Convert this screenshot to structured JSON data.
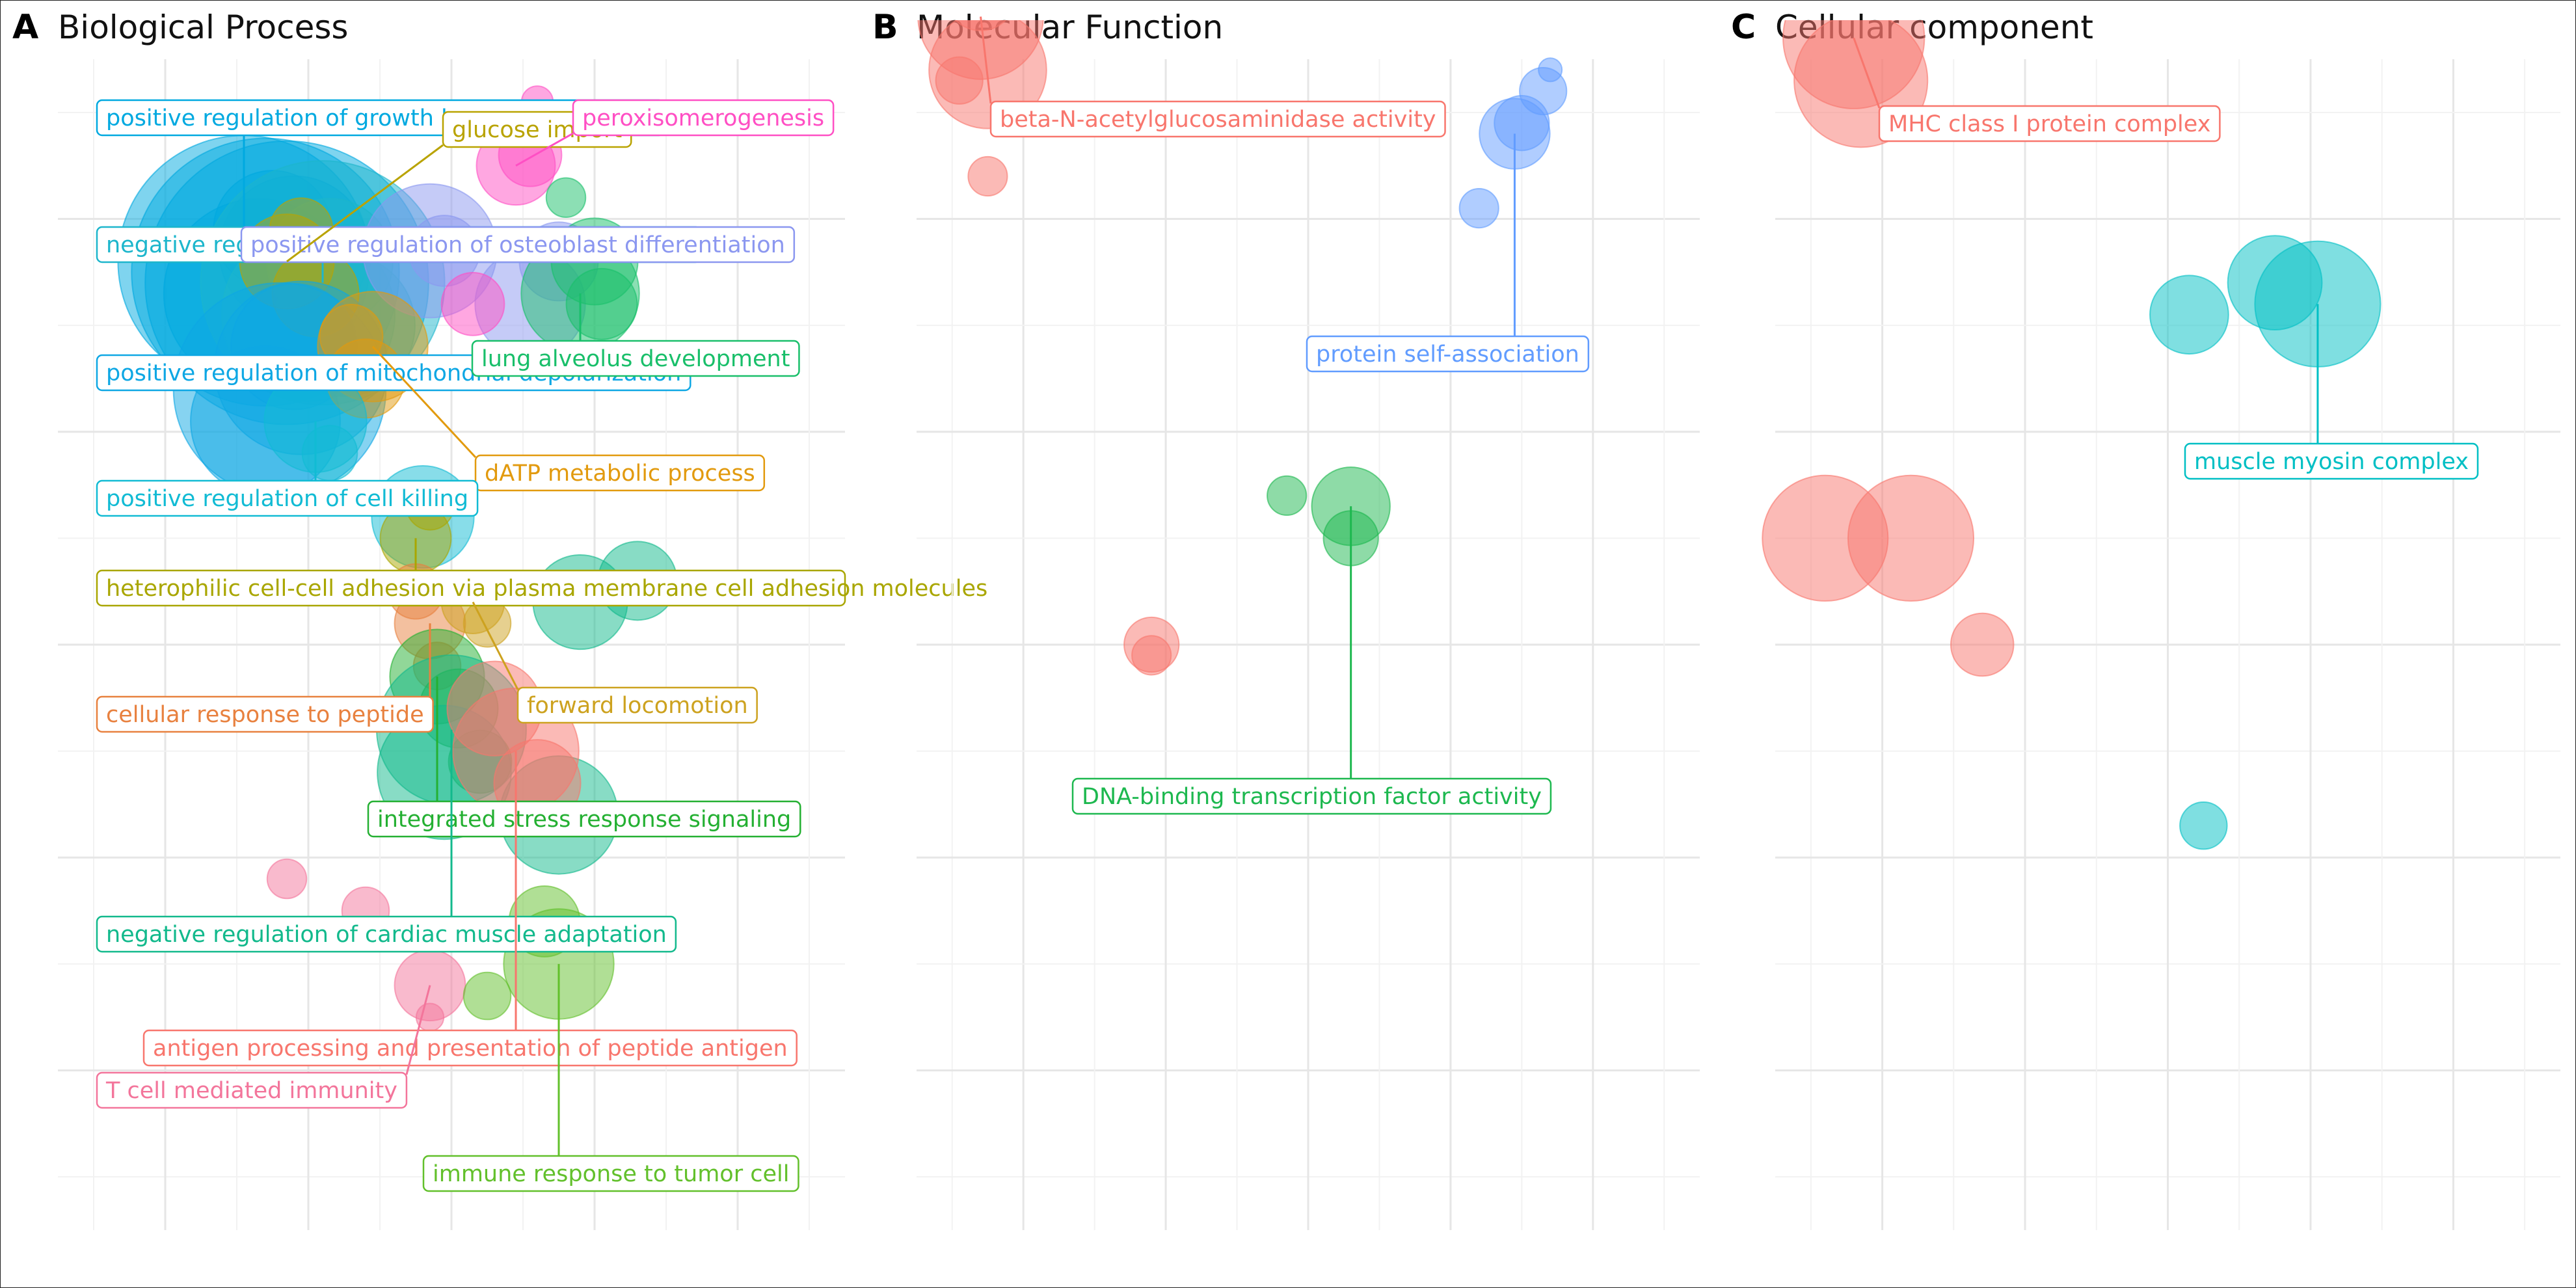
{
  "chart_data": [
    {
      "type": "scatter",
      "panel_letter": "A",
      "title": "Biological Process",
      "clusters": [
        {
          "label": "positive regulation of growth hormone secretion",
          "color": "#00A9E0",
          "points": [
            [
              -2.9,
              3.6,
              3.2
            ],
            [
              -2.6,
              3.5,
              3.4
            ],
            [
              -2.3,
              3.4,
              3.6
            ],
            [
              -2.7,
              3.3,
              2.4
            ],
            [
              -2.2,
              3.7,
              1.9
            ],
            [
              -2.5,
              3.9,
              1.5
            ]
          ]
        },
        {
          "label": "negative regulation of mitochondrial depolarization",
          "color": "#1DB6CC",
          "points": [
            [
              -1.8,
              3.4,
              3.1
            ],
            [
              -2.0,
              3.1,
              2.2
            ],
            [
              -1.5,
              3.0,
              1.8
            ],
            [
              -1.7,
              3.6,
              1.6
            ]
          ]
        },
        {
          "label": "positive regulation of osteoblast differentiation",
          "color": "#8B97F0",
          "points": [
            [
              -0.3,
              3.7,
              1.7
            ],
            [
              -0.1,
              3.7,
              0.9
            ],
            [
              1.5,
              3.6,
              1.0
            ],
            [
              1.1,
              3.2,
              1.4
            ]
          ]
        },
        {
          "label": "glucose import",
          "color": "#B9A300",
          "points": [
            [
              -2.3,
              3.6,
              1.2
            ],
            [
              -1.9,
              3.3,
              1.1
            ],
            [
              -2.1,
              3.9,
              0.8
            ]
          ]
        },
        {
          "label": "peroxisomerogenesis",
          "color": "#FF4FC4",
          "points": [
            [
              0.9,
              4.5,
              1.0
            ],
            [
              1.1,
              4.6,
              0.8
            ],
            [
              0.3,
              3.2,
              0.8
            ],
            [
              1.2,
              5.1,
              0.4
            ]
          ]
        },
        {
          "label": "positive regulation of mitochondrial depolarization",
          "color": "#0EA7E4",
          "points": [
            [
              -2.4,
              2.4,
              2.7
            ],
            [
              -2.1,
              2.6,
              2.2
            ],
            [
              -2.6,
              2.1,
              1.9
            ],
            [
              -2.2,
              2.8,
              1.6
            ]
          ]
        },
        {
          "label": "lung alveolus development",
          "color": "#19BF6A",
          "points": [
            [
              1.8,
              3.3,
              1.5
            ],
            [
              2.0,
              3.6,
              1.1
            ],
            [
              2.1,
              3.2,
              0.9
            ],
            [
              1.6,
              4.2,
              0.5
            ]
          ]
        },
        {
          "label": "dATP metabolic process",
          "color": "#E29A0E",
          "points": [
            [
              -1.1,
              2.8,
              1.4
            ],
            [
              -1.2,
              2.5,
              1.0
            ],
            [
              -1.4,
              2.9,
              0.8
            ]
          ]
        },
        {
          "label": "positive regulation of cell killing",
          "color": "#11BBD4",
          "points": [
            [
              -1.9,
              2.1,
              1.3
            ],
            [
              -0.4,
              1.2,
              1.3
            ],
            [
              -1.7,
              1.8,
              0.7
            ]
          ]
        },
        {
          "label": "heterophilic cell-cell adhesion via plasma membrane cell adhesion molecules",
          "color": "#A9A600",
          "points": [
            [
              -0.5,
              1.0,
              0.9
            ],
            [
              -0.3,
              1.3,
              0.6
            ]
          ]
        },
        {
          "label": "cellular response to peptide",
          "color": "#E8813F",
          "points": [
            [
              -0.3,
              0.2,
              0.9
            ],
            [
              -0.5,
              0.5,
              0.7
            ],
            [
              -0.2,
              -0.2,
              0.6
            ]
          ]
        },
        {
          "label": "forward locomotion",
          "color": "#CDA21F",
          "points": [
            [
              0.3,
              0.4,
              0.8
            ],
            [
              0.5,
              0.2,
              0.6
            ]
          ]
        },
        {
          "label": "integrated stress response signaling",
          "color": "#24B032",
          "points": [
            [
              -0.2,
              -0.3,
              1.2
            ],
            [
              0.1,
              -0.6,
              1.0
            ],
            [
              0.4,
              -1.1,
              0.8
            ]
          ]
        },
        {
          "label": "negative regulation of cardiac muscle adaptation",
          "color": "#12B98C",
          "points": [
            [
              0.0,
              -0.8,
              1.9
            ],
            [
              -0.1,
              -1.2,
              1.7
            ],
            [
              1.5,
              -1.6,
              1.5
            ],
            [
              1.8,
              0.4,
              1.2
            ],
            [
              2.6,
              0.6,
              1.0
            ]
          ]
        },
        {
          "label": "antigen processing and presentation of peptide antigen",
          "color": "#F8766D",
          "points": [
            [
              0.9,
              -1.0,
              1.6
            ],
            [
              1.2,
              -1.3,
              1.1
            ],
            [
              0.6,
              -0.6,
              1.2
            ]
          ]
        },
        {
          "label": "T cell mediated immunity",
          "color": "#F3759B",
          "points": [
            [
              -0.3,
              -3.2,
              0.9
            ],
            [
              -2.3,
              -2.2,
              0.5
            ],
            [
              -1.2,
              -2.5,
              0.6
            ],
            [
              -0.3,
              -3.5,
              0.35
            ]
          ]
        },
        {
          "label": "immune response to tumor cell",
          "color": "#62C02B",
          "points": [
            [
              1.5,
              -3.0,
              1.4
            ],
            [
              1.3,
              -2.6,
              0.9
            ],
            [
              0.5,
              -3.3,
              0.6
            ]
          ]
        }
      ]
    },
    {
      "type": "scatter",
      "panel_letter": "B",
      "title": "Molecular Function",
      "clusters": [
        {
          "label": "beta-N-acetylglucosaminidase activity",
          "color": "#F8766D",
          "points": [
            [
              -4.6,
              5.9,
              1.6
            ],
            [
              -4.5,
              5.4,
              1.5
            ],
            [
              -4.6,
              6.1,
              0.9
            ],
            [
              -4.9,
              5.3,
              0.6
            ],
            [
              -4.5,
              4.4,
              0.5
            ]
          ]
        },
        {
          "label": "protein self-association",
          "color": "#619CFF",
          "points": [
            [
              2.9,
              4.8,
              0.9
            ],
            [
              3.0,
              4.9,
              0.7
            ],
            [
              3.3,
              5.2,
              0.6
            ],
            [
              2.4,
              4.1,
              0.5
            ],
            [
              3.4,
              5.4,
              0.3
            ]
          ]
        },
        {
          "label": "DNA-binding transcription factor activity",
          "color": "#1DB84F",
          "points": [
            [
              0.6,
              1.3,
              1.0
            ],
            [
              0.6,
              1.0,
              0.7
            ],
            [
              -0.3,
              1.4,
              0.5
            ]
          ]
        },
        {
          "label": "",
          "color": "#F8766D",
          "points": [
            [
              -2.2,
              0.0,
              0.7
            ],
            [
              -2.2,
              -0.1,
              0.5
            ]
          ]
        }
      ]
    },
    {
      "type": "scatter",
      "panel_letter": "C",
      "title": "Cellular component",
      "clusters": [
        {
          "label": "MHC class I protein complex",
          "color": "#F8766D",
          "points": [
            [
              -4.4,
              5.7,
              1.8
            ],
            [
              -4.3,
              5.3,
              1.7
            ],
            [
              -4.8,
              1.0,
              1.6
            ],
            [
              -3.6,
              1.0,
              1.6
            ],
            [
              -2.6,
              0.0,
              0.8
            ]
          ]
        },
        {
          "label": "muscle myosin complex",
          "color": "#00BFC4",
          "points": [
            [
              2.1,
              3.2,
              1.6
            ],
            [
              1.5,
              3.4,
              1.2
            ],
            [
              0.3,
              3.1,
              1.0
            ],
            [
              0.5,
              -1.7,
              0.6
            ]
          ]
        }
      ]
    }
  ]
}
